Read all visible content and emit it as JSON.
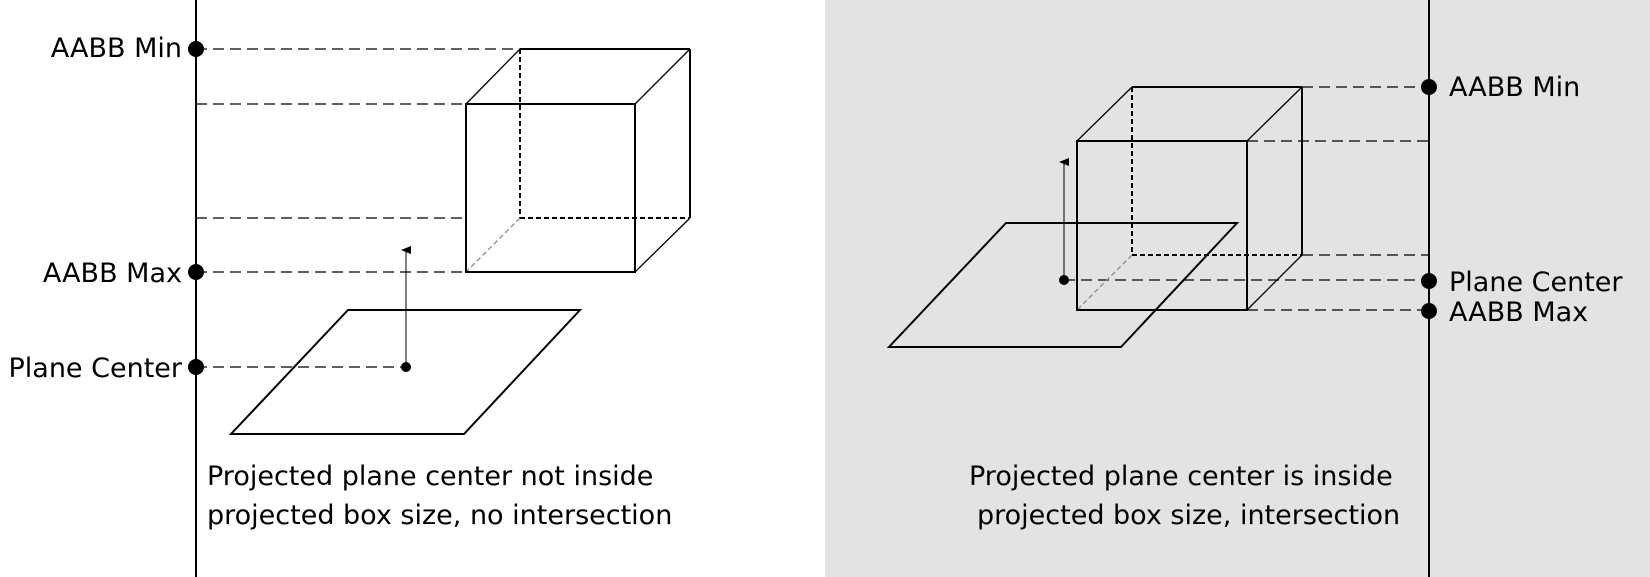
{
  "colors": {
    "right_panel_background": "#e3e3e3",
    "line": "#000000"
  },
  "left_panel": {
    "labels": {
      "aabb_min": "AABB Min",
      "aabb_max": "AABB Max",
      "plane_center": "Plane Center"
    },
    "caption": {
      "line1": "Projected plane center not inside",
      "line2": "projected box size, no intersection"
    }
  },
  "right_panel": {
    "labels": {
      "aabb_min": "AABB Min",
      "plane_center": "Plane Center",
      "aabb_max": "AABB Max"
    },
    "caption": {
      "line1": "Projected plane center is inside",
      "line2": "projected box size, intersection"
    }
  }
}
